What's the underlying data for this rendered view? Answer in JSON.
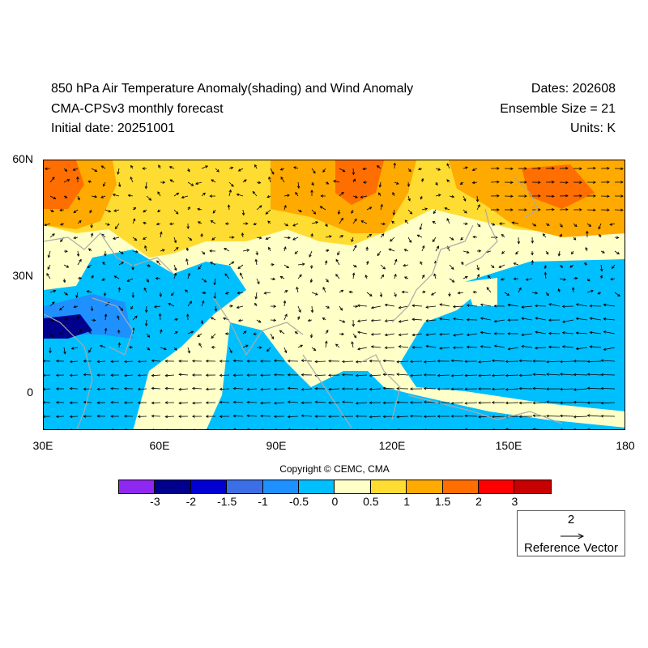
{
  "header": {
    "title_line1": "850 hPa Air Temperature Anomaly(shading) and Wind Anomaly",
    "title_line2": "CMA-CPSv3 monthly forecast",
    "title_line3": "Initial date: 20251001",
    "dates": "Dates: 202608",
    "ensemble": "Ensemble Size = 21",
    "units": "Units: K"
  },
  "map": {
    "lat_labels": [
      "60N",
      "30N",
      "0"
    ],
    "lon_labels": [
      "30E",
      "60E",
      "90E",
      "120E",
      "150E",
      "180"
    ],
    "extent": {
      "lon": [
        30,
        180
      ],
      "lat": [
        -10,
        60
      ]
    }
  },
  "copyright": "Copyright © CEMC, CMA",
  "colorbar": {
    "colors": [
      "#8f28f0",
      "#00008c",
      "#0000d2",
      "#3c6ee6",
      "#1e90ff",
      "#00bfff",
      "#ffffc8",
      "#ffdc32",
      "#ffaa00",
      "#ff6e00",
      "#ff0000",
      "#c80000"
    ],
    "labels": [
      "-3",
      "-2",
      "-1.5",
      "-1",
      "-0.5",
      "0",
      "0.5",
      "1",
      "1.5",
      "2",
      "3"
    ]
  },
  "reference_vector": {
    "magnitude": "2",
    "label": "Reference Vector"
  },
  "chart_data": {
    "type": "heatmap",
    "title": "850 hPa Air Temperature Anomaly(shading) and Wind Anomaly",
    "units": "K",
    "levels": [
      -3,
      -2,
      -1.5,
      -1,
      -0.5,
      0,
      0.5,
      1,
      1.5,
      2,
      3
    ],
    "xlabel": "",
    "ylabel": "",
    "xlim": [
      30,
      180
    ],
    "ylim": [
      -10,
      60
    ]
  }
}
